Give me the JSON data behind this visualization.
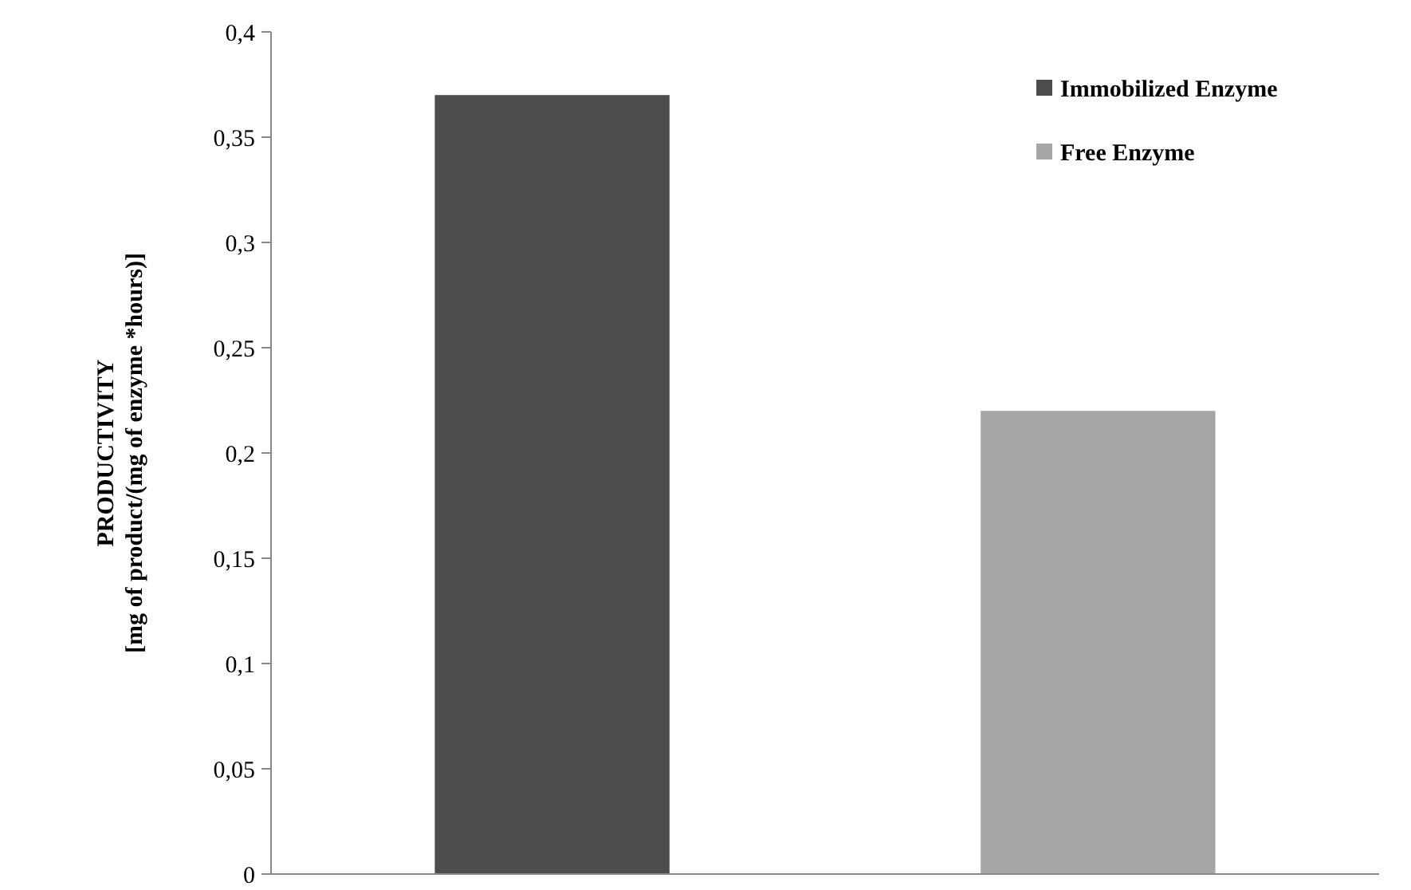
{
  "chart_data": {
    "type": "bar",
    "ylabel": "PRODUCTIVITY\n[mg of product/(mg of enzyme *hours)]",
    "categories": [
      null,
      null
    ],
    "series": [
      {
        "name": "Immobilized Enzyme",
        "color": "#4d4d4d",
        "values": [
          0.37,
          null
        ]
      },
      {
        "name": "Free Enzyme",
        "color": "#a6a6a6",
        "values": [
          null,
          0.22
        ]
      }
    ],
    "ylim": [
      0,
      0.4
    ],
    "yticks": [
      0,
      {
        "value": 0.05,
        "label": "0,05"
      },
      {
        "value": 0.1,
        "label": "0,1"
      },
      {
        "value": 0.15,
        "label": "0,15"
      },
      {
        "value": 0.2,
        "label": "0,2"
      },
      {
        "value": 0.25,
        "label": "0,25"
      },
      {
        "value": 0.3,
        "label": "0,3"
      },
      {
        "value": 0.35,
        "label": "0,35"
      },
      {
        "value": 0.4,
        "label": "0,4"
      }
    ],
    "grid": false,
    "legend": "top right"
  }
}
